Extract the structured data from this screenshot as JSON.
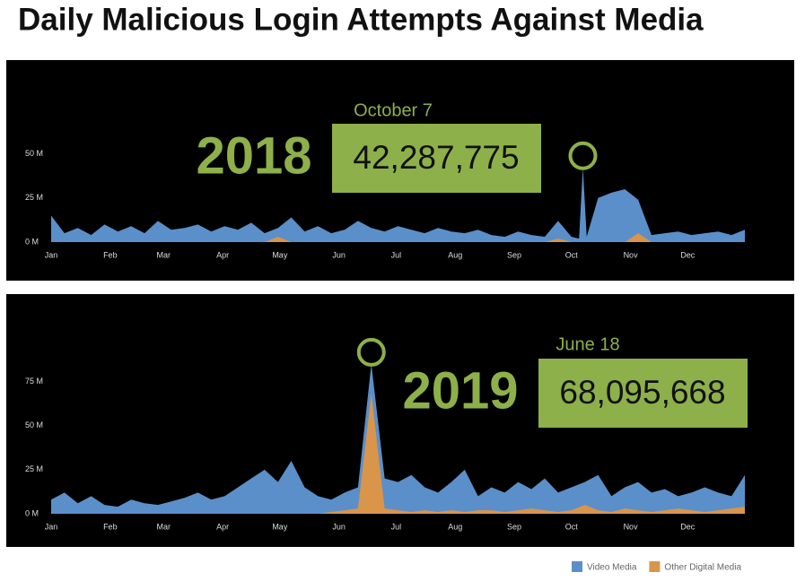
{
  "title": "Daily Malicious Login Attempts Against Media",
  "chart_data": [
    {
      "type": "area",
      "year": "2018",
      "annotation": "October 7",
      "x": [
        1,
        8,
        15,
        22,
        29,
        36,
        43,
        50,
        57,
        64,
        71,
        78,
        85,
        92,
        99,
        106,
        113,
        120,
        127,
        134,
        141,
        148,
        155,
        162,
        169,
        176,
        183,
        190,
        197,
        204,
        211,
        218,
        225,
        232,
        239,
        246,
        253,
        260,
        267,
        274,
        278,
        280,
        282,
        288,
        295,
        302,
        309,
        316,
        323,
        330,
        337,
        344,
        351,
        358,
        365
      ],
      "xlim": [
        1,
        365
      ],
      "xticks": [
        {
          "value": 1,
          "label": "Jan"
        },
        {
          "value": 32,
          "label": "Feb"
        },
        {
          "value": 60,
          "label": "Mar"
        },
        {
          "value": 91,
          "label": "Apr"
        },
        {
          "value": 121,
          "label": "May"
        },
        {
          "value": 152,
          "label": "Jun"
        },
        {
          "value": 182,
          "label": "Jul"
        },
        {
          "value": 213,
          "label": "Aug"
        },
        {
          "value": 244,
          "label": "Sep"
        },
        {
          "value": 274,
          "label": "Oct"
        },
        {
          "value": 305,
          "label": "Nov"
        },
        {
          "value": 335,
          "label": "Dec"
        }
      ],
      "ylim": [
        0,
        95
      ],
      "yticks": [
        {
          "value": 0,
          "label": "0 M"
        },
        {
          "value": 25,
          "label": "25 M"
        },
        {
          "value": 50,
          "label": "50 M"
        }
      ],
      "series": [
        {
          "name": "Video Media",
          "color": "#5b8fc9",
          "values": [
            15,
            5,
            8,
            4,
            10,
            6,
            9,
            5,
            12,
            7,
            8,
            10,
            6,
            9,
            7,
            11,
            5,
            8,
            14,
            6,
            9,
            5,
            7,
            12,
            8,
            6,
            9,
            7,
            5,
            8,
            6,
            5,
            7,
            4,
            3,
            6,
            4,
            3,
            12,
            3,
            2,
            42.287775,
            3,
            25,
            28,
            30,
            24,
            4,
            5,
            6,
            4,
            5,
            6,
            4,
            7
          ],
          "value_labels": [
            null,
            null,
            null,
            null,
            null,
            null,
            null,
            null,
            null,
            null,
            null,
            null,
            null,
            null,
            null,
            null,
            null,
            null,
            null,
            null,
            null,
            null,
            null,
            null,
            null,
            null,
            null,
            null,
            null,
            null,
            null,
            null,
            null,
            null,
            null,
            null,
            null,
            null,
            null,
            null,
            null,
            "42,287,775",
            null,
            null,
            null,
            null,
            null,
            null,
            null,
            null,
            null,
            null,
            null,
            null,
            null
          ]
        },
        {
          "name": "Other Digital Media",
          "color": "#d9954a",
          "values": [
            0,
            0,
            0,
            0,
            0,
            0,
            0,
            0,
            0,
            0,
            0,
            0,
            0,
            0,
            0,
            0,
            0,
            3,
            0,
            0,
            0,
            0,
            0,
            0,
            0,
            0,
            0,
            0,
            0,
            0,
            0,
            0,
            0,
            0,
            0,
            0,
            0,
            0,
            2,
            0,
            0,
            0,
            0,
            0,
            0,
            0,
            5,
            0,
            0,
            0,
            0,
            0,
            0,
            0,
            0
          ]
        }
      ]
    },
    {
      "type": "area",
      "year": "2019",
      "annotation": "June 18",
      "x": [
        1,
        8,
        15,
        22,
        29,
        36,
        43,
        50,
        57,
        64,
        71,
        78,
        85,
        92,
        99,
        106,
        113,
        120,
        127,
        134,
        141,
        148,
        155,
        162,
        169,
        176,
        183,
        190,
        197,
        204,
        211,
        218,
        225,
        232,
        239,
        246,
        253,
        260,
        267,
        274,
        281,
        288,
        295,
        302,
        309,
        316,
        323,
        330,
        337,
        344,
        351,
        358,
        365
      ],
      "xlim": [
        1,
        365
      ],
      "xticks": [
        {
          "value": 1,
          "label": "Jan"
        },
        {
          "value": 32,
          "label": "Feb"
        },
        {
          "value": 60,
          "label": "Mar"
        },
        {
          "value": 91,
          "label": "Apr"
        },
        {
          "value": 121,
          "label": "May"
        },
        {
          "value": 152,
          "label": "Jun"
        },
        {
          "value": 182,
          "label": "Jul"
        },
        {
          "value": 213,
          "label": "Aug"
        },
        {
          "value": 244,
          "label": "Sep"
        },
        {
          "value": 274,
          "label": "Oct"
        },
        {
          "value": 305,
          "label": "Nov"
        },
        {
          "value": 335,
          "label": "Dec"
        }
      ],
      "ylim": [
        0,
        118
      ],
      "yticks": [
        {
          "value": 0,
          "label": "0 M"
        },
        {
          "value": 25,
          "label": "25 M"
        },
        {
          "value": 50,
          "label": "50 M"
        },
        {
          "value": 75,
          "label": "75 M"
        }
      ],
      "series": [
        {
          "name": "Video Media",
          "color": "#5b8fc9",
          "values": [
            8,
            12,
            6,
            10,
            5,
            4,
            8,
            6,
            5,
            7,
            9,
            12,
            8,
            10,
            15,
            20,
            25,
            18,
            30,
            15,
            10,
            8,
            12,
            15,
            85,
            20,
            18,
            22,
            15,
            12,
            18,
            25,
            10,
            15,
            12,
            18,
            14,
            20,
            12,
            15,
            18,
            22,
            10,
            15,
            18,
            12,
            14,
            10,
            12,
            15,
            12,
            10,
            22
          ]
        },
        {
          "name": "Other Digital Media",
          "color": "#d9954a",
          "values": [
            0,
            0,
            0,
            0,
            0,
            0,
            0,
            0,
            0,
            0,
            0,
            0,
            0,
            0,
            0,
            0,
            0,
            0,
            0,
            0,
            0,
            1,
            2,
            3,
            68.095668,
            3,
            2,
            1,
            2,
            1,
            2,
            1,
            2,
            2,
            1,
            2,
            3,
            2,
            1,
            2,
            5,
            2,
            1,
            3,
            2,
            1,
            2,
            3,
            2,
            1,
            2,
            3,
            4
          ],
          "value_labels": [
            null,
            null,
            null,
            null,
            null,
            null,
            null,
            null,
            null,
            null,
            null,
            null,
            null,
            null,
            null,
            null,
            null,
            null,
            null,
            null,
            null,
            null,
            null,
            null,
            "68,095,668",
            null,
            null,
            null,
            null,
            null,
            null,
            null,
            null,
            null,
            null,
            null,
            null,
            null,
            null,
            null,
            null,
            null,
            null,
            null,
            null,
            null,
            null,
            null,
            null,
            null,
            null,
            null,
            null
          ]
        }
      ]
    }
  ]
}
